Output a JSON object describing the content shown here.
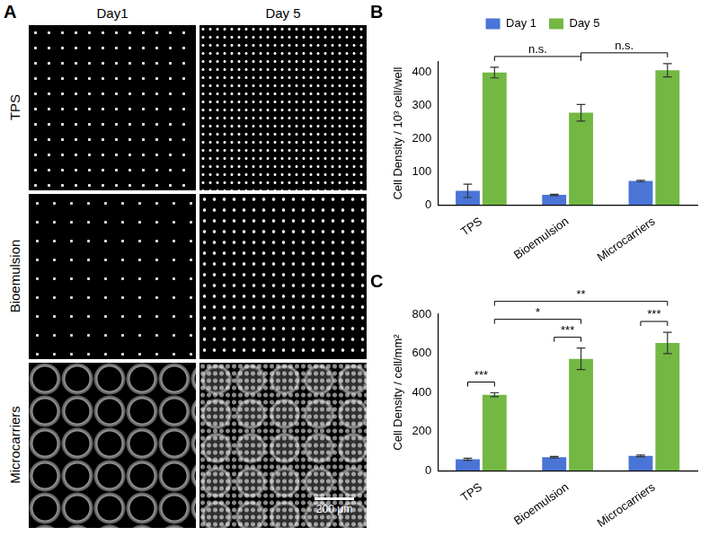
{
  "panel_a": {
    "panel": "A",
    "columns": [
      "Day1",
      "Day 5"
    ],
    "rows": [
      "TPS",
      "Bioemulsion",
      "Microcarriers"
    ],
    "scale_bar": "200 μm"
  },
  "chart_data": [
    {
      "panel": "B",
      "type": "bar",
      "ylabel": "Cell Density / 10³ cell/well",
      "categories": [
        "TPS",
        "Bioemulsion",
        "Microcarriers"
      ],
      "series": [
        {
          "name": "Day 1",
          "color": "#4a74d6",
          "values": [
            42,
            30,
            72
          ],
          "errors": [
            20,
            2,
            2
          ]
        },
        {
          "name": "Day 5",
          "color": "#72b843",
          "values": [
            398,
            277,
            405
          ],
          "errors": [
            16,
            25,
            20
          ]
        }
      ],
      "ylim": [
        0,
        430
      ],
      "yticks": [
        0,
        100,
        200,
        300,
        400
      ],
      "grid": false,
      "legend": "top",
      "annotations": [
        {
          "text": "n.s.",
          "from": {
            "series": "Day 5",
            "category": "TPS"
          },
          "to": {
            "series": "Day 5",
            "category": "Bioemulsion"
          }
        },
        {
          "text": "n.s.",
          "from": {
            "series": "Day 5",
            "category": "Bioemulsion"
          },
          "to": {
            "series": "Day 5",
            "category": "Microcarriers"
          }
        }
      ]
    },
    {
      "panel": "C",
      "type": "bar",
      "ylabel": "Cell Density / cell/mm²",
      "categories": [
        "TPS",
        "Bioemulsion",
        "Microcarriers"
      ],
      "series": [
        {
          "name": "Day 1",
          "color": "#4a74d6",
          "values": [
            58,
            68,
            75
          ],
          "errors": [
            5,
            4,
            4
          ]
        },
        {
          "name": "Day 5",
          "color": "#72b843",
          "values": [
            388,
            572,
            653
          ],
          "errors": [
            10,
            55,
            55
          ]
        }
      ],
      "ylim": [
        0,
        800
      ],
      "yticks": [
        0,
        200,
        400,
        600,
        800
      ],
      "grid": false,
      "annotations": [
        {
          "text": "***",
          "from": {
            "series": "Day 1",
            "category": "TPS"
          },
          "to": {
            "series": "Day 5",
            "category": "TPS"
          }
        },
        {
          "text": "***",
          "from": {
            "series": "Day 1",
            "category": "Bioemulsion"
          },
          "to": {
            "series": "Day 5",
            "category": "Bioemulsion"
          }
        },
        {
          "text": "***",
          "from": {
            "series": "Day 1",
            "category": "Microcarriers"
          },
          "to": {
            "series": "Day 5",
            "category": "Microcarriers"
          }
        },
        {
          "text": "*",
          "from": {
            "series": "Day 5",
            "category": "TPS"
          },
          "to": {
            "series": "Day 5",
            "category": "Bioemulsion"
          }
        },
        {
          "text": "**",
          "from": {
            "series": "Day 5",
            "category": "TPS"
          },
          "to": {
            "series": "Day 5",
            "category": "Microcarriers"
          }
        }
      ]
    }
  ]
}
